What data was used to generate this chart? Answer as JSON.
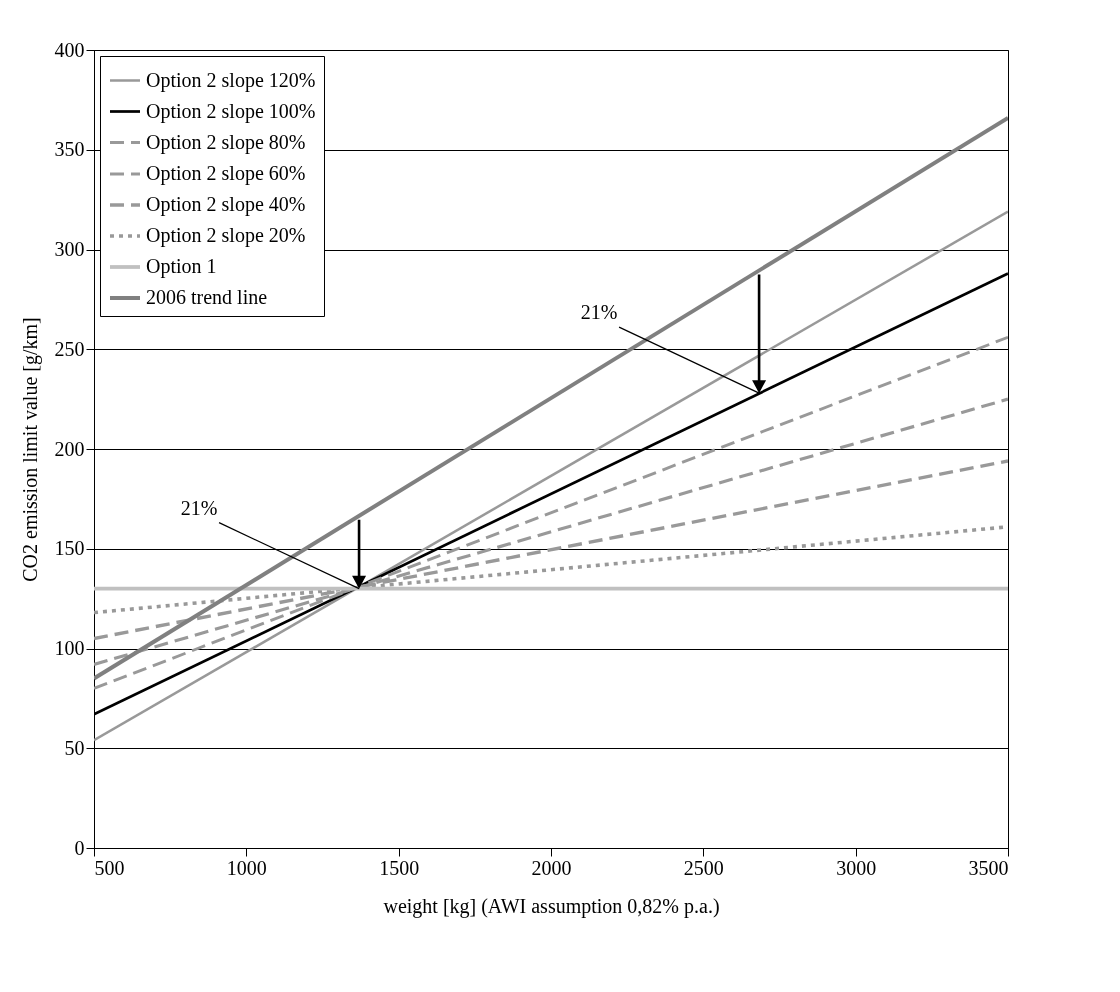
{
  "chart_data": {
    "type": "line",
    "xlabel": "weight [kg] (AWI assumption 0,82% p.a.)",
    "ylabel": "CO2 emission limit value [g/km]",
    "x": [
      500,
      3500
    ],
    "series": [
      {
        "name": "Option 2 slope 120%",
        "color": "#999999",
        "values": [
          54,
          319
        ],
        "line_style": "solid"
      },
      {
        "name": "Option 2 slope 100%",
        "color": "#000000",
        "values": [
          67,
          288
        ],
        "line_style": "solid"
      },
      {
        "name": "Option 2 slope 80%",
        "color": "#999999",
        "values": [
          80,
          256
        ],
        "line_style": "dashed"
      },
      {
        "name": "Option 2 slope 60%",
        "color": "#999999",
        "values": [
          92,
          225
        ],
        "line_style": "dashed"
      },
      {
        "name": "Option 2 slope 40%",
        "color": "#999999",
        "values": [
          105,
          194
        ],
        "line_style": "dashed"
      },
      {
        "name": "Option 2 slope 20%",
        "color": "#999999",
        "values": [
          118,
          161
        ],
        "line_style": "dotted"
      },
      {
        "name": "Option 1",
        "color": "#c0c0c0",
        "values": [
          130,
          130
        ],
        "line_style": "solid"
      },
      {
        "name": "2006 trend line",
        "color": "#808080",
        "values": [
          85,
          366
        ],
        "line_style": "solid"
      }
    ],
    "annotations": [
      {
        "text": "21%",
        "x": 1370,
        "y": 130
      },
      {
        "text": "21%",
        "x": 2683,
        "y": 228
      }
    ],
    "xlim": [
      500,
      3500
    ],
    "ylim": [
      0,
      400
    ],
    "xticks": [
      500,
      1000,
      1500,
      2000,
      2500,
      3000,
      3500
    ],
    "yticks": [
      0,
      50,
      100,
      150,
      200,
      250,
      300,
      350,
      400
    ],
    "grid": "y",
    "legend": "top left",
    "marker": "none"
  }
}
